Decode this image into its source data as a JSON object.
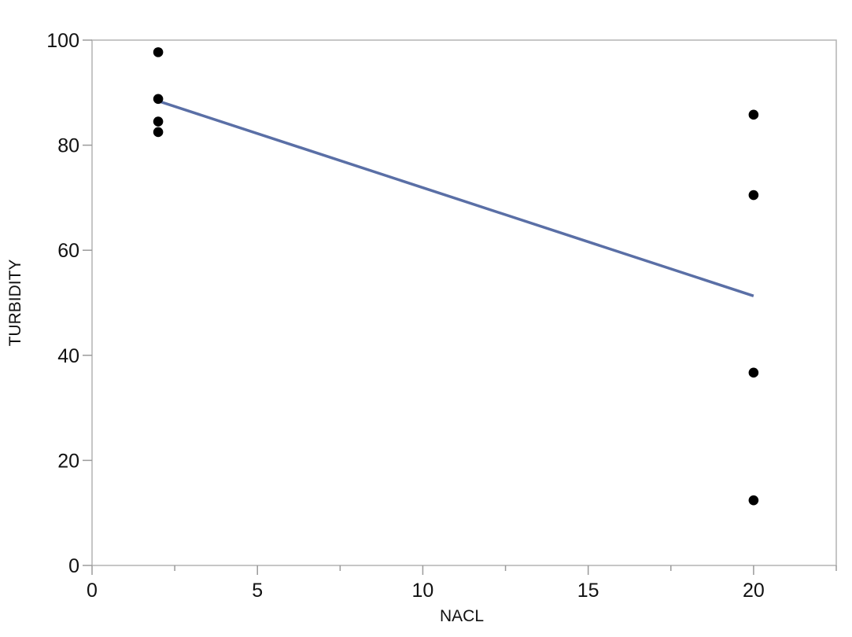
{
  "chart_data": {
    "type": "scatter",
    "xlabel": "NACL",
    "ylabel": "TURBIDITY",
    "xlim": [
      0,
      22.5
    ],
    "ylim": [
      0,
      100
    ],
    "xticks": [
      0,
      5,
      10,
      15,
      20
    ],
    "xminor_ticks": [
      2.5,
      7.5,
      12.5,
      17.5,
      22.5
    ],
    "yticks": [
      0,
      20,
      40,
      60,
      80,
      100
    ],
    "grid": false,
    "legend": "none",
    "series": [
      {
        "points": [
          {
            "x": 2,
            "y": 97.7
          },
          {
            "x": 2,
            "y": 88.8
          },
          {
            "x": 2,
            "y": 84.5
          },
          {
            "x": 2,
            "y": 82.5
          },
          {
            "x": 20,
            "y": 85.8
          },
          {
            "x": 20,
            "y": 70.5
          },
          {
            "x": 20,
            "y": 36.7
          },
          {
            "x": 20,
            "y": 12.4
          }
        ],
        "color": "#000000"
      }
    ],
    "fit_line": {
      "x": [
        2,
        20
      ],
      "y": [
        88.4,
        51.3
      ],
      "color": "#5a6fa6"
    }
  }
}
